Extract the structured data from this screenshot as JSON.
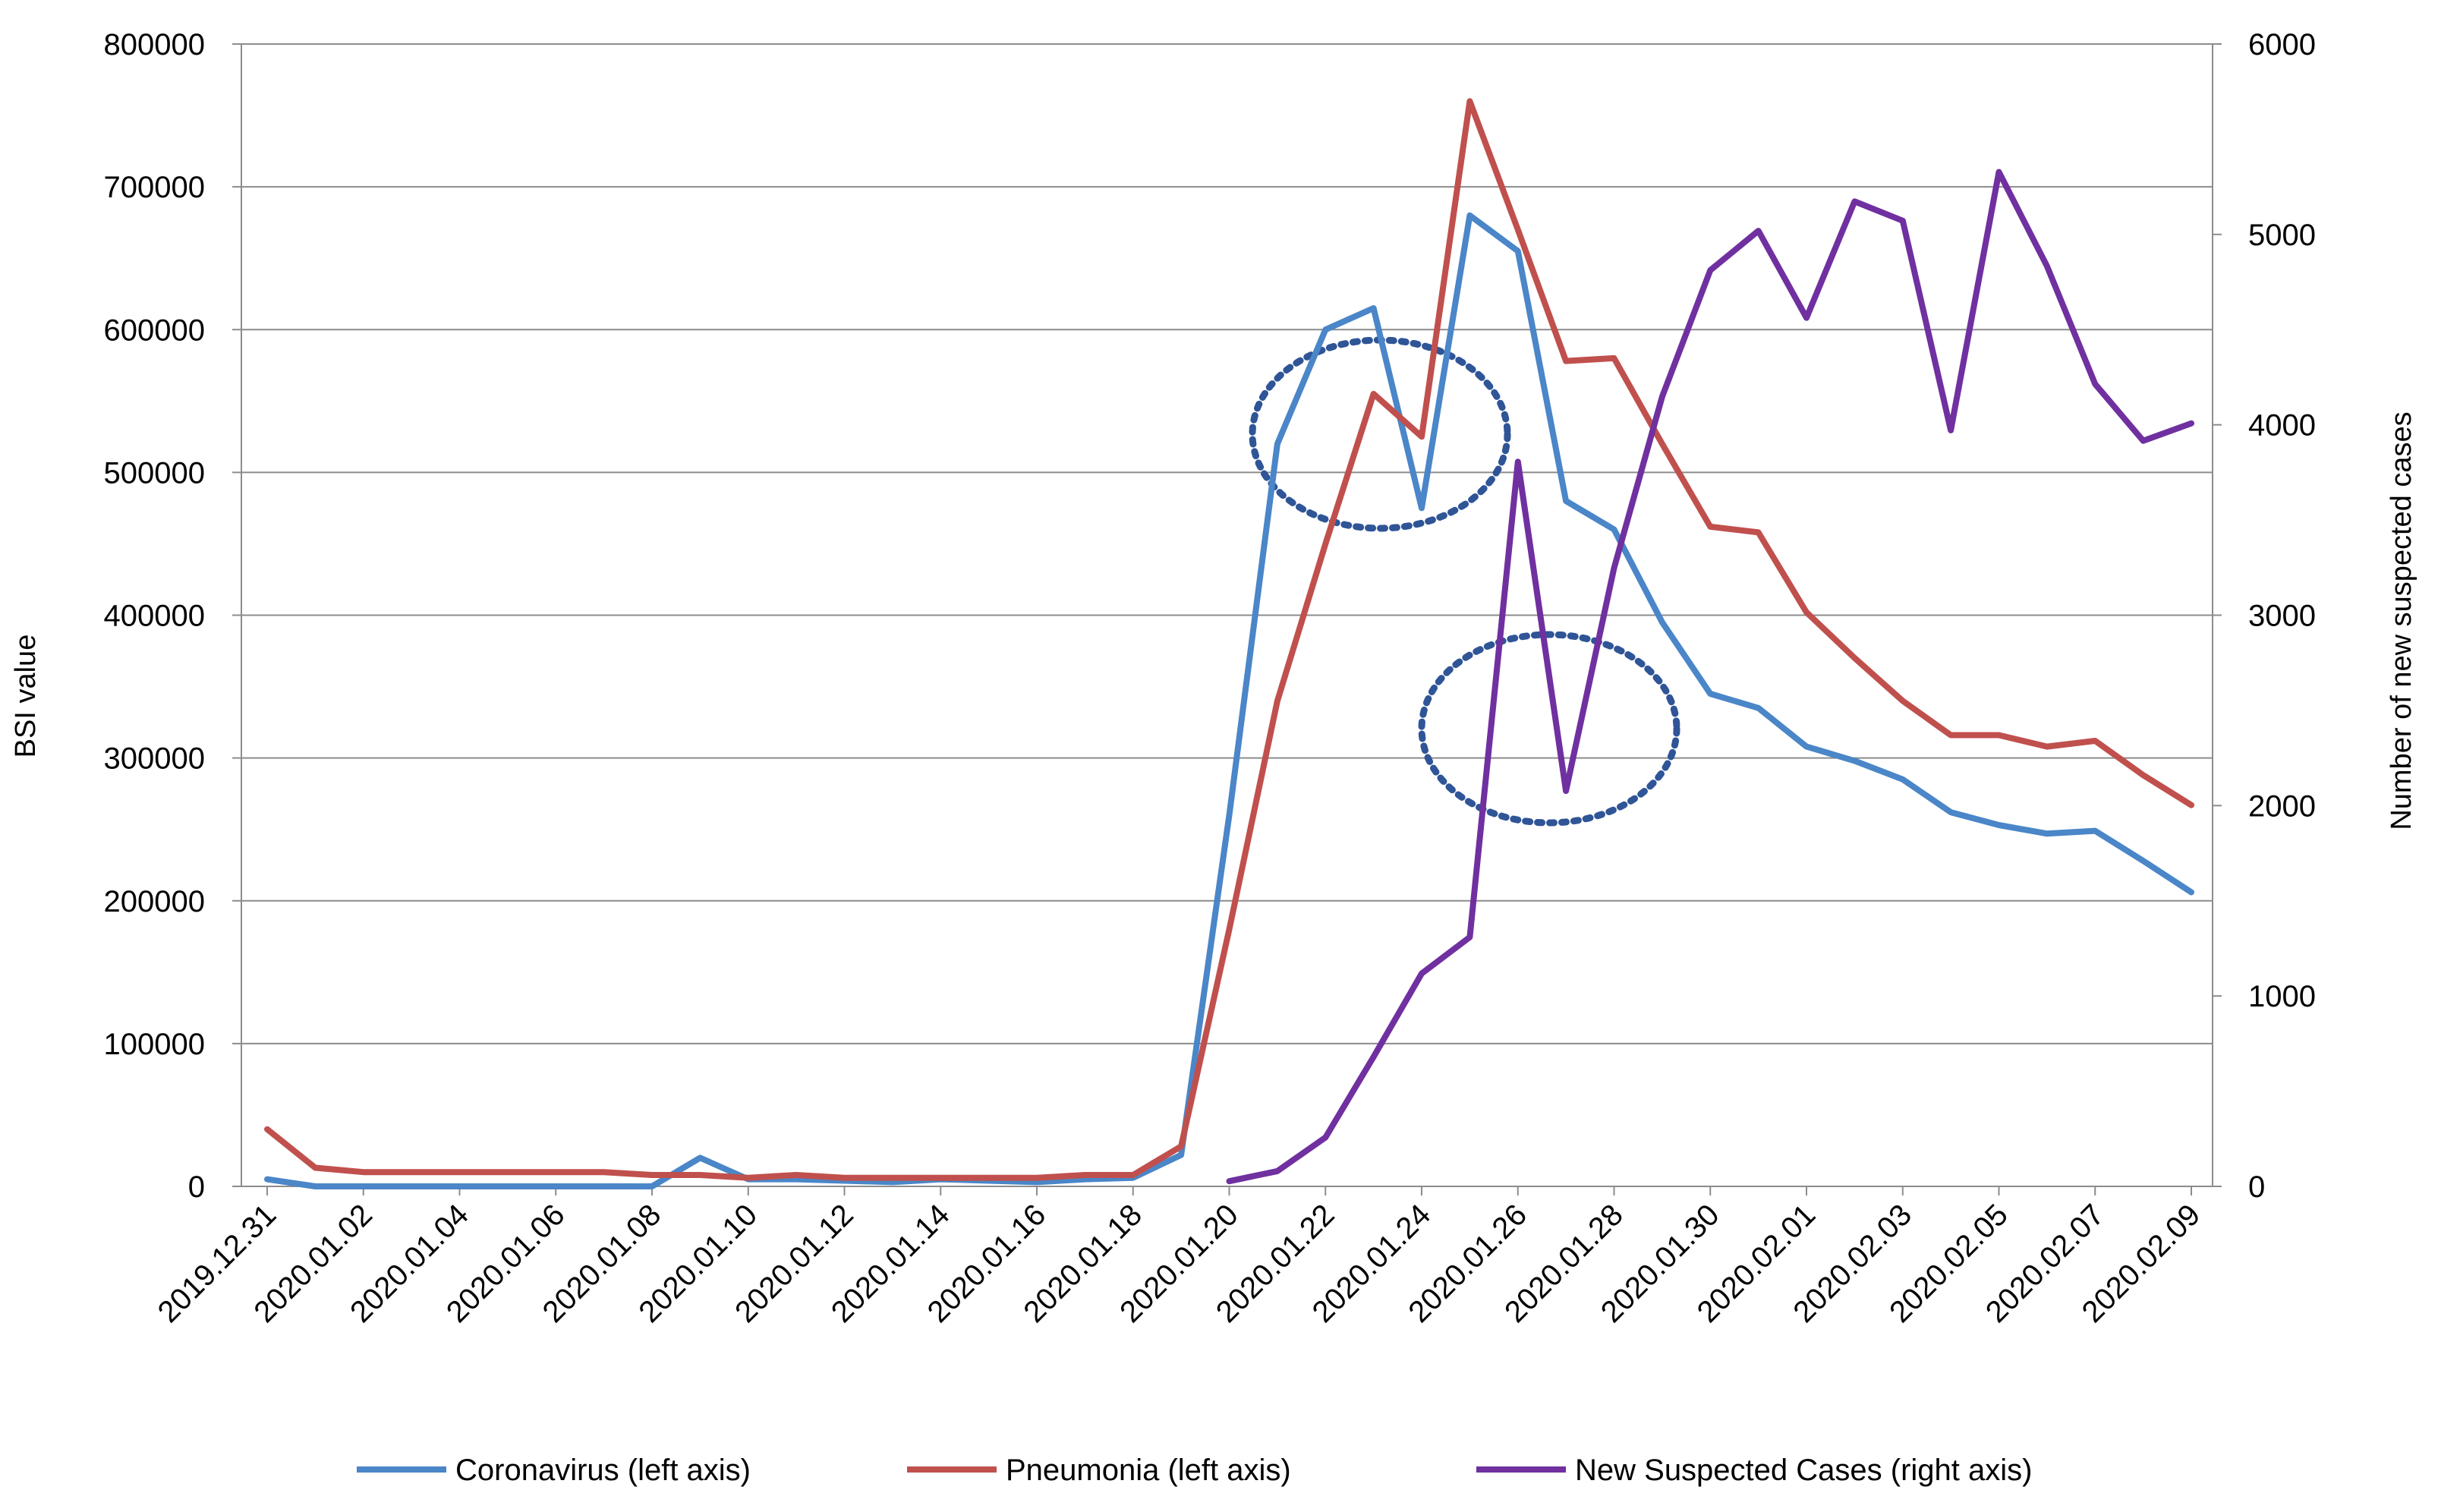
{
  "chart_data": {
    "type": "line",
    "title": "",
    "xlabel": "",
    "ylabel": "BSI value",
    "y2label": "Number of new suspected cases",
    "ylim": [
      0,
      800000
    ],
    "y2lim": [
      0,
      6000
    ],
    "yticks": [
      "0",
      "100000",
      "200000",
      "300000",
      "400000",
      "500000",
      "600000",
      "700000",
      "800000"
    ],
    "y2ticks": [
      "0",
      "1000",
      "2000",
      "3000",
      "4000",
      "5000",
      "6000"
    ],
    "grid": true,
    "legend_position": "bottom",
    "x": [
      "2019.12.31",
      "2020.01.01",
      "2020.01.02",
      "2020.01.03",
      "2020.01.04",
      "2020.01.05",
      "2020.01.06",
      "2020.01.07",
      "2020.01.08",
      "2020.01.09",
      "2020.01.10",
      "2020.01.11",
      "2020.01.12",
      "2020.01.13",
      "2020.01.14",
      "2020.01.15",
      "2020.01.16",
      "2020.01.17",
      "2020.01.18",
      "2020.01.19",
      "2020.01.20",
      "2020.01.21",
      "2020.01.22",
      "2020.01.23",
      "2020.01.24",
      "2020.01.25",
      "2020.01.26",
      "2020.01.27",
      "2020.01.28",
      "2020.01.29",
      "2020.01.30",
      "2020.01.31",
      "2020.02.01",
      "2020.02.02",
      "2020.02.03",
      "2020.02.04",
      "2020.02.05",
      "2020.02.06",
      "2020.02.07",
      "2020.02.08",
      "2020.02.09"
    ],
    "x_tick_labels": [
      "2019.12.31",
      "2020.01.02",
      "2020.01.04",
      "2020.01.06",
      "2020.01.08",
      "2020.01.10",
      "2020.01.12",
      "2020.01.14",
      "2020.01.16",
      "2020.01.18",
      "2020.01.20",
      "2020.01.22",
      "2020.01.24",
      "2020.01.26",
      "2020.01.28",
      "2020.01.30",
      "2020.02.01",
      "2020.02.03",
      "2020.02.05",
      "2020.02.07",
      "2020.02.09"
    ],
    "series": [
      {
        "name": "Coronavirus (left axis)",
        "axis": "left",
        "color": "#4a86c8",
        "values": [
          5000,
          0,
          0,
          0,
          0,
          0,
          0,
          0,
          0,
          20000,
          5000,
          5000,
          4000,
          3000,
          5000,
          4000,
          3000,
          5000,
          6000,
          22000,
          260000,
          520000,
          600000,
          615000,
          475000,
          680000,
          655000,
          480000,
          460000,
          395000,
          345000,
          335000,
          308000,
          298000,
          285000,
          262000,
          253000,
          247000,
          249000,
          228000,
          206000
        ]
      },
      {
        "name": "Pneumonia (left axis)",
        "axis": "left",
        "color": "#c0504d",
        "values": [
          40000,
          13000,
          10000,
          10000,
          10000,
          10000,
          10000,
          10000,
          8000,
          8000,
          6000,
          8000,
          6000,
          6000,
          6000,
          6000,
          6000,
          8000,
          8000,
          28000,
          180000,
          340000,
          450000,
          555000,
          525000,
          760000,
          670000,
          578000,
          580000,
          520000,
          462000,
          458000,
          402000,
          370000,
          340000,
          316000,
          316000,
          308000,
          312000,
          288000,
          267000
        ]
      },
      {
        "name": "New Suspected Cases (right axis)",
        "axis": "right",
        "color": "#7030a0",
        "values": [
          null,
          null,
          null,
          null,
          null,
          null,
          null,
          null,
          null,
          null,
          null,
          null,
          null,
          null,
          null,
          null,
          null,
          null,
          null,
          null,
          27,
          80,
          257,
          680,
          1118,
          1309,
          3806,
          2077,
          3248,
          4148,
          4812,
          5019,
          4562,
          5173,
          5072,
          3971,
          5328,
          4833,
          4214,
          3916,
          4008
        ]
      }
    ]
  }
}
